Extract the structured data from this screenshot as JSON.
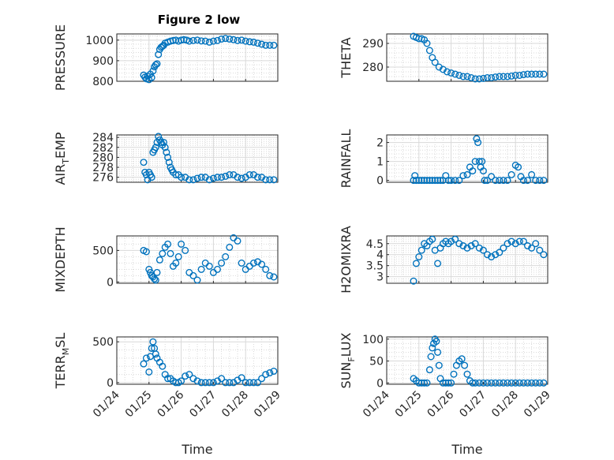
{
  "figure": {
    "title": "Figure 2 low",
    "background": "#ffffff",
    "marker_color": "#0072BD",
    "axis_color": "#262626",
    "grid_color": "#d9d9d9"
  },
  "chart_data": [
    {
      "type": "scatter",
      "title": "Figure 2 low",
      "ylabel": "PRESSURE",
      "xlabel": "",
      "xlim": [
        "01/24",
        "01/29"
      ],
      "ylim": [
        800,
        1030
      ],
      "yticks": [
        "800",
        "900",
        "1000"
      ],
      "xticks": [],
      "grid": true,
      "x": [
        "01/24 20:00",
        "01/24 21:00",
        "01/24 22:00",
        "01/24 23:00",
        "01/25 00:00",
        "01/25 01:00",
        "01/25 02:00",
        "01/25 03:00",
        "01/25 04:00",
        "01/25 05:00",
        "01/25 06:00",
        "01/25 07:00",
        "01/25 08:00",
        "01/25 09:00",
        "01/25 10:00",
        "01/25 11:00",
        "01/25 12:00",
        "01/25 14:00",
        "01/25 16:00",
        "01/25 18:00",
        "01/25 20:00",
        "01/25 22:00",
        "01/26 00:00",
        "01/26 02:00",
        "01/26 04:00",
        "01/26 06:00",
        "01/26 09:00",
        "01/26 12:00",
        "01/26 15:00",
        "01/26 18:00",
        "01/26 21:00",
        "01/27 00:00",
        "01/27 03:00",
        "01/27 06:00",
        "01/27 09:00",
        "01/27 12:00",
        "01/27 15:00",
        "01/27 18:00",
        "01/27 21:00",
        "01/28 00:00",
        "01/28 03:00",
        "01/28 06:00",
        "01/28 09:00",
        "01/28 12:00",
        "01/28 15:00",
        "01/28 18:00",
        "01/28 21:00"
      ],
      "y": [
        830,
        820,
        812,
        825,
        808,
        835,
        818,
        850,
        870,
        880,
        885,
        930,
        955,
        965,
        970,
        975,
        985,
        990,
        995,
        998,
        1000,
        995,
        1000,
        1002,
        1000,
        995,
        998,
        1000,
        996,
        995,
        990,
        995,
        998,
        1005,
        1008,
        1005,
        1002,
        998,
        1000,
        995,
        992,
        990,
        985,
        980,
        975,
        975,
        975
      ]
    },
    {
      "type": "scatter",
      "ylabel": "THETA",
      "xlabel": "",
      "xlim": [
        "01/24",
        "01/29"
      ],
      "ylim": [
        274,
        294
      ],
      "yticks": [
        "280",
        "290"
      ],
      "xticks": [],
      "grid": true,
      "x": [
        "01/24 20:00",
        "01/24 22:00",
        "01/25 00:00",
        "01/25 02:00",
        "01/25 04:00",
        "01/25 06:00",
        "01/25 08:00",
        "01/25 10:00",
        "01/25 12:00",
        "01/25 15:00",
        "01/25 18:00",
        "01/25 21:00",
        "01/26 00:00",
        "01/26 03:00",
        "01/26 06:00",
        "01/26 09:00",
        "01/26 12:00",
        "01/26 15:00",
        "01/26 18:00",
        "01/26 21:00",
        "01/27 00:00",
        "01/27 03:00",
        "01/27 06:00",
        "01/27 09:00",
        "01/27 12:00",
        "01/27 15:00",
        "01/27 18:00",
        "01/27 21:00",
        "01/28 00:00",
        "01/28 03:00",
        "01/28 06:00",
        "01/28 09:00",
        "01/28 12:00",
        "01/28 15:00",
        "01/28 18:00",
        "01/28 21:00"
      ],
      "y": [
        293,
        292.5,
        292,
        292,
        291.5,
        290,
        287,
        284,
        282,
        280,
        279,
        278,
        277.5,
        277,
        276.5,
        276,
        276,
        275.5,
        275,
        275,
        275.2,
        275.5,
        275.5,
        275.8,
        276,
        276,
        276,
        276.2,
        276.5,
        276.5,
        276.8,
        277,
        277,
        277,
        277,
        277
      ]
    },
    {
      "type": "scatter",
      "ylabel": "AIR_TEMP",
      "xlabel": "",
      "xlim": [
        "01/24",
        "01/29"
      ],
      "ylim": [
        275,
        284.5
      ],
      "yticks": [
        "276",
        "278",
        "280",
        "282",
        "284"
      ],
      "xticks": [],
      "grid": true,
      "x": [
        "01/24 20:00",
        "01/24 21:00",
        "01/24 22:00",
        "01/24 23:00",
        "01/25 00:00",
        "01/25 01:00",
        "01/25 02:00",
        "01/25 03:00",
        "01/25 04:00",
        "01/25 05:00",
        "01/25 06:00",
        "01/25 07:00",
        "01/25 08:00",
        "01/25 09:00",
        "01/25 10:00",
        "01/25 11:00",
        "01/25 12:00",
        "01/25 13:00",
        "01/25 14:00",
        "01/25 15:00",
        "01/25 16:00",
        "01/25 17:00",
        "01/25 18:00",
        "01/25 20:00",
        "01/25 22:00",
        "01/26 00:00",
        "01/26 03:00",
        "01/26 06:00",
        "01/26 09:00",
        "01/26 12:00",
        "01/26 15:00",
        "01/26 18:00",
        "01/26 21:00",
        "01/27 00:00",
        "01/27 03:00",
        "01/27 06:00",
        "01/27 09:00",
        "01/27 12:00",
        "01/27 15:00",
        "01/27 18:00",
        "01/27 21:00",
        "01/28 00:00",
        "01/28 03:00",
        "01/28 06:00",
        "01/28 09:00",
        "01/28 12:00",
        "01/28 15:00",
        "01/28 18:00",
        "01/28 21:00"
      ],
      "y": [
        279,
        277,
        276.5,
        275.5,
        277,
        276.5,
        276,
        281,
        281.5,
        282,
        283,
        284.2,
        283.5,
        283,
        282.5,
        283,
        282,
        281,
        280,
        279,
        278,
        277.5,
        277,
        276.5,
        276.5,
        276,
        276,
        275.5,
        275.5,
        275.8,
        276,
        276,
        275.5,
        275.8,
        276,
        276,
        276.2,
        276.5,
        276.5,
        276,
        275.8,
        276,
        276.5,
        276.5,
        276,
        276,
        275.5,
        275.5,
        275.5
      ]
    },
    {
      "type": "scatter",
      "ylabel": "RAINFALL",
      "xlabel": "",
      "xlim": [
        "01/24",
        "01/29"
      ],
      "ylim": [
        -0.1,
        2.4
      ],
      "yticks": [
        "0",
        "1",
        "2"
      ],
      "xticks": [],
      "grid": true,
      "x": [
        "01/24 20:00",
        "01/24 21:00",
        "01/24 22:00",
        "01/25 00:00",
        "01/25 02:00",
        "01/25 04:00",
        "01/25 06:00",
        "01/25 08:00",
        "01/25 10:00",
        "01/25 12:00",
        "01/25 14:00",
        "01/25 16:00",
        "01/25 18:00",
        "01/25 20:00",
        "01/25 22:00",
        "01/26 00:00",
        "01/26 03:00",
        "01/26 06:00",
        "01/26 09:00",
        "01/26 12:00",
        "01/26 14:00",
        "01/26 16:00",
        "01/26 18:00",
        "01/26 19:00",
        "01/26 20:00",
        "01/26 21:00",
        "01/26 22:00",
        "01/26 23:00",
        "01/27 00:00",
        "01/27 01:00",
        "01/27 03:00",
        "01/27 06:00",
        "01/27 09:00",
        "01/27 12:00",
        "01/27 15:00",
        "01/27 18:00",
        "01/27 21:00",
        "01/28 00:00",
        "01/28 02:00",
        "01/28 04:00",
        "01/28 06:00",
        "01/28 09:00",
        "01/28 12:00",
        "01/28 15:00",
        "01/28 18:00",
        "01/28 21:00"
      ],
      "y": [
        0,
        0.25,
        0,
        0,
        0,
        0,
        0,
        0,
        0,
        0,
        0,
        0,
        0,
        0.25,
        0,
        0,
        0,
        0,
        0.25,
        0.3,
        0.7,
        0.5,
        1.0,
        2.2,
        2.0,
        1.0,
        0.7,
        1.0,
        0.5,
        0,
        0,
        0.2,
        0,
        0,
        0,
        0,
        0.3,
        0.8,
        0.7,
        0.2,
        0,
        0,
        0.3,
        0,
        0,
        0
      ]
    },
    {
      "type": "scatter",
      "ylabel": "MIXDEPTH",
      "xlabel": "",
      "xlim": [
        "01/24",
        "01/29"
      ],
      "ylim": [
        -20,
        730
      ],
      "yticks": [
        "0",
        "500"
      ],
      "xticks": [],
      "grid": true,
      "x": [
        "01/24 20:00",
        "01/24 22:00",
        "01/25 00:00",
        "01/25 01:00",
        "01/25 02:00",
        "01/25 03:00",
        "01/25 04:00",
        "01/25 05:00",
        "01/25 06:00",
        "01/25 08:00",
        "01/25 10:00",
        "01/25 12:00",
        "01/25 14:00",
        "01/25 16:00",
        "01/25 18:00",
        "01/25 20:00",
        "01/25 22:00",
        "01/26 00:00",
        "01/26 03:00",
        "01/26 06:00",
        "01/26 09:00",
        "01/26 12:00",
        "01/26 15:00",
        "01/26 18:00",
        "01/26 21:00",
        "01/27 00:00",
        "01/27 03:00",
        "01/27 06:00",
        "01/27 09:00",
        "01/27 12:00",
        "01/27 15:00",
        "01/27 18:00",
        "01/27 21:00",
        "01/28 00:00",
        "01/28 03:00",
        "01/28 06:00",
        "01/28 09:00",
        "01/28 12:00",
        "01/28 15:00",
        "01/28 18:00",
        "01/28 21:00"
      ],
      "y": [
        500,
        480,
        200,
        150,
        100,
        80,
        50,
        30,
        150,
        350,
        450,
        550,
        600,
        450,
        250,
        300,
        400,
        600,
        500,
        150,
        100,
        30,
        200,
        300,
        250,
        150,
        200,
        300,
        400,
        550,
        700,
        650,
        300,
        200,
        250,
        300,
        320,
        280,
        200,
        100,
        80
      ]
    },
    {
      "type": "scatter",
      "ylabel": "H2OMIXRA",
      "xlabel": "",
      "xlim": [
        "01/24",
        "01/29"
      ],
      "ylim": [
        2.7,
        4.85
      ],
      "yticks": [
        "3",
        "3.5",
        "4",
        "4.5"
      ],
      "xticks": [],
      "grid": true,
      "x": [
        "01/24 20:00",
        "01/24 22:00",
        "01/25 00:00",
        "01/25 02:00",
        "01/25 04:00",
        "01/25 06:00",
        "01/25 08:00",
        "01/25 10:00",
        "01/25 12:00",
        "01/25 14:00",
        "01/25 16:00",
        "01/25 18:00",
        "01/25 20:00",
        "01/25 22:00",
        "01/26 00:00",
        "01/26 03:00",
        "01/26 06:00",
        "01/26 09:00",
        "01/26 12:00",
        "01/26 15:00",
        "01/26 18:00",
        "01/26 21:00",
        "01/27 00:00",
        "01/27 03:00",
        "01/27 06:00",
        "01/27 09:00",
        "01/27 12:00",
        "01/27 15:00",
        "01/27 18:00",
        "01/27 21:00",
        "01/28 00:00",
        "01/28 03:00",
        "01/28 06:00",
        "01/28 09:00",
        "01/28 12:00",
        "01/28 15:00",
        "01/28 18:00",
        "01/28 21:00"
      ],
      "y": [
        2.8,
        3.6,
        3.9,
        4.2,
        4.5,
        4.4,
        4.6,
        4.7,
        4.2,
        3.6,
        4.3,
        4.5,
        4.6,
        4.5,
        4.6,
        4.7,
        4.5,
        4.4,
        4.3,
        4.4,
        4.5,
        4.3,
        4.2,
        4.0,
        3.9,
        4.0,
        4.1,
        4.3,
        4.5,
        4.6,
        4.5,
        4.6,
        4.6,
        4.4,
        4.3,
        4.5,
        4.2,
        4.0
      ]
    },
    {
      "type": "scatter",
      "ylabel": "TERR_MSL",
      "xlabel": "Time",
      "xlim": [
        "01/24",
        "01/29"
      ],
      "ylim": [
        -20,
        560
      ],
      "yticks": [
        "0",
        "500"
      ],
      "xticks": [
        "01/24",
        "01/25",
        "01/26",
        "01/27",
        "01/28",
        "01/29"
      ],
      "grid": true,
      "x": [
        "01/24 20:00",
        "01/24 22:00",
        "01/25 00:00",
        "01/25 01:00",
        "01/25 02:00",
        "01/25 03:00",
        "01/25 04:00",
        "01/25 05:00",
        "01/25 06:00",
        "01/25 08:00",
        "01/25 10:00",
        "01/25 12:00",
        "01/25 14:00",
        "01/25 16:00",
        "01/25 18:00",
        "01/25 20:00",
        "01/25 22:00",
        "01/26 00:00",
        "01/26 03:00",
        "01/26 06:00",
        "01/26 09:00",
        "01/26 12:00",
        "01/26 15:00",
        "01/26 18:00",
        "01/26 21:00",
        "01/27 00:00",
        "01/27 03:00",
        "01/27 06:00",
        "01/27 09:00",
        "01/27 12:00",
        "01/27 15:00",
        "01/27 18:00",
        "01/27 21:00",
        "01/28 00:00",
        "01/28 03:00",
        "01/28 06:00",
        "01/28 09:00",
        "01/28 12:00",
        "01/28 15:00",
        "01/28 18:00",
        "01/28 21:00"
      ],
      "y": [
        230,
        300,
        130,
        320,
        420,
        500,
        420,
        350,
        300,
        250,
        200,
        100,
        50,
        50,
        20,
        0,
        0,
        20,
        80,
        100,
        50,
        20,
        0,
        0,
        0,
        0,
        20,
        50,
        0,
        0,
        0,
        30,
        60,
        0,
        0,
        0,
        0,
        50,
        100,
        120,
        140
      ]
    },
    {
      "type": "scatter",
      "ylabel": "SUN_FLUX",
      "xlabel": "Time",
      "xlim": [
        "01/24",
        "01/29"
      ],
      "ylim": [
        -3,
        105
      ],
      "yticks": [
        "0",
        "50",
        "100"
      ],
      "xticks": [
        "01/24",
        "01/25",
        "01/26",
        "01/27",
        "01/28",
        "01/29"
      ],
      "grid": true,
      "x": [
        "01/24 20:00",
        "01/24 22:00",
        "01/25 00:00",
        "01/25 02:00",
        "01/25 04:00",
        "01/25 06:00",
        "01/25 08:00",
        "01/25 09:00",
        "01/25 10:00",
        "01/25 11:00",
        "01/25 12:00",
        "01/25 13:00",
        "01/25 14:00",
        "01/25 15:00",
        "01/25 16:00",
        "01/25 18:00",
        "01/25 20:00",
        "01/25 22:00",
        "01/26 00:00",
        "01/26 02:00",
        "01/26 04:00",
        "01/26 06:00",
        "01/26 08:00",
        "01/26 10:00",
        "01/26 12:00",
        "01/26 14:00",
        "01/26 16:00",
        "01/26 18:00",
        "01/26 21:00",
        "01/27 00:00",
        "01/27 03:00",
        "01/27 06:00",
        "01/27 09:00",
        "01/27 12:00",
        "01/27 15:00",
        "01/27 18:00",
        "01/27 21:00",
        "01/28 00:00",
        "01/28 03:00",
        "01/28 06:00",
        "01/28 09:00",
        "01/28 12:00",
        "01/28 15:00",
        "01/28 18:00",
        "01/28 21:00"
      ],
      "y": [
        10,
        5,
        0,
        0,
        0,
        0,
        30,
        60,
        80,
        90,
        100,
        95,
        70,
        40,
        10,
        0,
        0,
        0,
        0,
        20,
        40,
        50,
        55,
        40,
        20,
        5,
        0,
        0,
        0,
        0,
        0,
        0,
        0,
        0,
        0,
        0,
        0,
        0,
        0,
        0,
        0,
        0,
        0,
        0,
        0
      ]
    }
  ]
}
